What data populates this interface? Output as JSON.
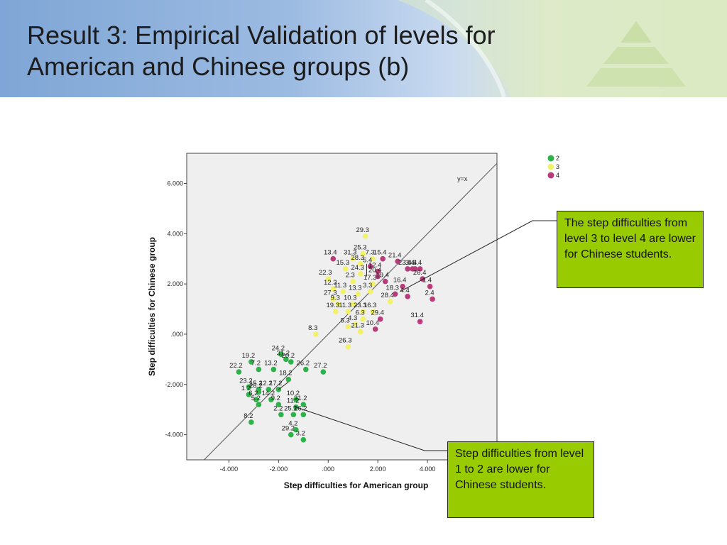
{
  "slide": {
    "title_lines": [
      "Result 3: Empirical Validation of levels for",
      "American and Chinese groups (b)"
    ],
    "callouts": {
      "top": "The step difficulties from level 3 to level 4 are lower for Chinese students.",
      "bottom": "Step difficulties from level 1 to 2 are lower for Chinese students."
    }
  },
  "colors": {
    "level2": "#2db34a",
    "level3": "#f2f26a",
    "level4": "#b83c7a",
    "callout_bg": "#99cc00",
    "plot_bg": "#efefef"
  },
  "chart_data": {
    "type": "scatter",
    "xlabel": "Step difficulties for American group",
    "ylabel": "Step difficulties for Chinese group",
    "xlim": [
      -5.7,
      6.8
    ],
    "ylim": [
      -5.0,
      7.2
    ],
    "x_ticks": [
      -4,
      -2,
      0,
      2,
      4
    ],
    "x_tick_labels": [
      "-4.000",
      "-2.000",
      ".000",
      "2.000",
      "4.000"
    ],
    "y_ticks": [
      -4,
      -2,
      0,
      2,
      4,
      6
    ],
    "y_tick_labels": [
      "-4.000",
      "-2.000",
      ".000",
      "2.000",
      "4.000",
      "6.000"
    ],
    "reference_line": {
      "label": "y=x",
      "slope": 1,
      "intercept": 0
    },
    "legend": [
      "2",
      "3",
      "4"
    ],
    "legend_position": "top-right",
    "grid": false,
    "series": [
      {
        "name": "2",
        "points": [
          {
            "label": "24.2",
            "x": -1.9,
            "y": -0.8
          },
          {
            "label": "19.2",
            "x": -3.1,
            "y": -1.1
          },
          {
            "label": "31.2",
            "x": -1.7,
            "y": -1.0
          },
          {
            "label": "20.2",
            "x": -1.5,
            "y": -1.1
          },
          {
            "label": "22.2",
            "x": -3.6,
            "y": -1.5
          },
          {
            "label": "7.2",
            "x": -2.8,
            "y": -1.4
          },
          {
            "label": "13.2",
            "x": -2.2,
            "y": -1.4
          },
          {
            "label": "26.2",
            "x": -0.9,
            "y": -1.4
          },
          {
            "label": "27.2",
            "x": -0.2,
            "y": -1.5
          },
          {
            "label": "23.2",
            "x": -3.2,
            "y": -2.1
          },
          {
            "label": "15.2",
            "x": -2.8,
            "y": -2.2
          },
          {
            "label": "12.2",
            "x": -2.4,
            "y": -2.2
          },
          {
            "label": "18.2",
            "x": -1.6,
            "y": -1.8
          },
          {
            "label": "17.2",
            "x": -2.0,
            "y": -2.2
          },
          {
            "label": "28.2",
            "x": -2.8,
            "y": -2.3
          },
          {
            "label": "1.2",
            "x": -3.2,
            "y": -2.4
          },
          {
            "label": "6.2",
            "x": -2.9,
            "y": -2.6
          },
          {
            "label": "10.2",
            "x": -1.3,
            "y": -2.6
          },
          {
            "label": "14.2",
            "x": -2.3,
            "y": -2.6
          },
          {
            "label": "5.2",
            "x": -2.8,
            "y": -2.8
          },
          {
            "label": "9.2",
            "x": -2.0,
            "y": -2.8
          },
          {
            "label": "21.2",
            "x": -1.0,
            "y": -2.8
          },
          {
            "label": "11.2",
            "x": -1.3,
            "y": -2.9
          },
          {
            "label": "2.2",
            "x": -1.9,
            "y": -3.2
          },
          {
            "label": "25.2",
            "x": -1.4,
            "y": -3.2
          },
          {
            "label": "16.2",
            "x": -1.0,
            "y": -3.2
          },
          {
            "label": "8.2",
            "x": -3.1,
            "y": -3.5
          },
          {
            "label": "4.2",
            "x": -1.3,
            "y": -3.8
          },
          {
            "label": "29.2",
            "x": -1.5,
            "y": -4.0
          },
          {
            "label": "3.2",
            "x": -1.0,
            "y": -4.2
          }
        ]
      },
      {
        "name": "3",
        "points": [
          {
            "label": "29.3",
            "x": 1.5,
            "y": 3.9
          },
          {
            "label": "25.3",
            "x": 1.4,
            "y": 3.2
          },
          {
            "label": "31.3",
            "x": 1.0,
            "y": 3.0
          },
          {
            "label": "7.3",
            "x": 1.8,
            "y": 3.0
          },
          {
            "label": "28.3",
            "x": 1.3,
            "y": 2.8
          },
          {
            "label": "15.3",
            "x": 0.7,
            "y": 2.6
          },
          {
            "label": "24.3",
            "x": 1.3,
            "y": 2.4
          },
          {
            "label": "22.3",
            "x": 0.0,
            "y": 2.2
          },
          {
            "label": "2.3",
            "x": 1.0,
            "y": 2.1
          },
          {
            "label": "17.3",
            "x": 1.8,
            "y": 2.0
          },
          {
            "label": "12.3",
            "x": 0.2,
            "y": 1.8
          },
          {
            "label": "11.3",
            "x": 0.6,
            "y": 1.7
          },
          {
            "label": "13.3",
            "x": 1.2,
            "y": 1.6
          },
          {
            "label": "3.3",
            "x": 1.7,
            "y": 1.7
          },
          {
            "label": "27.3",
            "x": 0.2,
            "y": 1.4
          },
          {
            "label": "9.3",
            "x": 0.4,
            "y": 1.2
          },
          {
            "label": "10.3",
            "x": 1.0,
            "y": 1.2
          },
          {
            "label": "28.4",
            "x": 2.5,
            "y": 1.3
          },
          {
            "label": "19.3",
            "x": 0.3,
            "y": 0.9
          },
          {
            "label": "11.3",
            "x": 0.8,
            "y": 0.9
          },
          {
            "label": "23.3",
            "x": 1.4,
            "y": 0.9
          },
          {
            "label": "16.3",
            "x": 1.8,
            "y": 0.9
          },
          {
            "label": "6.3",
            "x": 1.4,
            "y": 0.6
          },
          {
            "label": "4.3",
            "x": 1.1,
            "y": 0.4
          },
          {
            "label": "5.3",
            "x": 0.8,
            "y": 0.3
          },
          {
            "label": "8.3",
            "x": -0.5,
            "y": 0.0
          },
          {
            "label": "21.3",
            "x": 1.3,
            "y": 0.1
          },
          {
            "label": "26.3",
            "x": 0.8,
            "y": -0.5
          }
        ]
      },
      {
        "name": "4",
        "points": [
          {
            "label": "13.4",
            "x": 0.2,
            "y": 3.0
          },
          {
            "label": "15.4",
            "x": 2.2,
            "y": 3.0
          },
          {
            "label": "21.4",
            "x": 2.8,
            "y": 2.9
          },
          {
            "label": "5.4",
            "x": 1.7,
            "y": 2.7
          },
          {
            "label": "12.4",
            "x": 2.0,
            "y": 2.5
          },
          {
            "label": "23.4",
            "x": 3.2,
            "y": 2.6
          },
          {
            "label": "3.4",
            "x": 3.4,
            "y": 2.6
          },
          {
            "label": "6.4",
            "x": 3.7,
            "y": 2.6
          },
          {
            "label": "8.4",
            "x": 3.5,
            "y": 2.6
          },
          {
            "label": "20.4",
            "x": 2.0,
            "y": 2.3
          },
          {
            "label": "19.4",
            "x": 2.3,
            "y": 2.1
          },
          {
            "label": "26.4",
            "x": 3.8,
            "y": 2.2
          },
          {
            "label": "16.4",
            "x": 3.0,
            "y": 1.9
          },
          {
            "label": "1.4",
            "x": 4.1,
            "y": 1.9
          },
          {
            "label": "4.4",
            "x": 3.2,
            "y": 1.5
          },
          {
            "label": "2.4",
            "x": 4.2,
            "y": 1.4
          },
          {
            "label": "18.3",
            "x": 2.7,
            "y": 1.6
          },
          {
            "label": "31.4",
            "x": 3.7,
            "y": 0.5
          },
          {
            "label": "29.4",
            "x": 2.1,
            "y": 0.6
          },
          {
            "label": "10.4",
            "x": 1.9,
            "y": 0.2
          }
        ]
      }
    ]
  }
}
